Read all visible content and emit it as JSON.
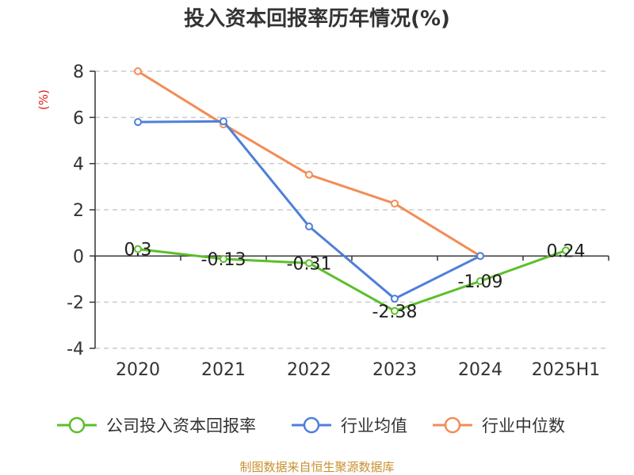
{
  "chart_data": {
    "type": "line",
    "title": "投入资本回报率历年情况(%)",
    "ylabel": "(%)",
    "categories": [
      "2020",
      "2021",
      "2022",
      "2023",
      "2024",
      "2025H1"
    ],
    "ylim": [
      -4,
      8
    ],
    "yticks": [
      8,
      6,
      4,
      2,
      0,
      -2,
      -4
    ],
    "grid": true,
    "legend_position": "bottom",
    "series": [
      {
        "name": "公司投入资本回报率",
        "color": "#5bbf2a",
        "values": [
          0.3,
          -0.13,
          -0.31,
          -2.38,
          -1.09,
          0.24
        ],
        "labels": [
          "0.3",
          "-0.13",
          "-0.31",
          "-2.38",
          "-1.09",
          "0.24"
        ]
      },
      {
        "name": "行业均值",
        "color": "#4f7fd9",
        "values": [
          5.8,
          5.83,
          1.28,
          -1.85,
          0.0,
          null
        ]
      },
      {
        "name": "行业中位数",
        "color": "#f38c55",
        "values": [
          8.0,
          5.7,
          3.52,
          2.27,
          0.0,
          null
        ]
      }
    ],
    "source": "制图数据来自恒生聚源数据库"
  }
}
